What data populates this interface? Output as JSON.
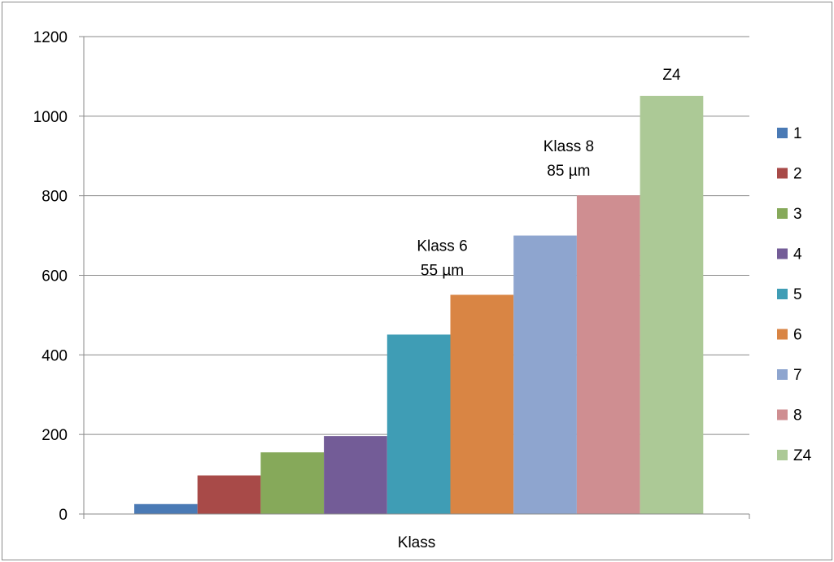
{
  "chart_data": {
    "type": "bar",
    "title": "",
    "xlabel": "Klass",
    "ylabel": "",
    "ylim": [
      0,
      1200
    ],
    "yticks": [
      0,
      200,
      400,
      600,
      800,
      1000,
      1200
    ],
    "grid": true,
    "legend_position": "right",
    "categories": [
      "Klass"
    ],
    "series": [
      {
        "name": "1",
        "values": [
          25
        ],
        "color": "#4a7ab5"
      },
      {
        "name": "2",
        "values": [
          97
        ],
        "color": "#a84a48"
      },
      {
        "name": "3",
        "values": [
          155
        ],
        "color": "#86a95a"
      },
      {
        "name": "4",
        "values": [
          196
        ],
        "color": "#735c97"
      },
      {
        "name": "5",
        "values": [
          451
        ],
        "color": "#3f9db5"
      },
      {
        "name": "6",
        "values": [
          551
        ],
        "color": "#d98544"
      },
      {
        "name": "7",
        "values": [
          700
        ],
        "color": "#8ea5cf"
      },
      {
        "name": "8",
        "values": [
          801
        ],
        "color": "#cf8e91"
      },
      {
        "name": "Z4",
        "values": [
          1051
        ],
        "color": "#acc996"
      }
    ],
    "annotations": [
      {
        "series": "6",
        "lines": [
          "Klass 6",
          "55 µm"
        ]
      },
      {
        "series": "8",
        "lines": [
          "Klass 8",
          "85 µm"
        ]
      },
      {
        "series": "Z4",
        "lines": [
          "Z4"
        ]
      }
    ]
  }
}
